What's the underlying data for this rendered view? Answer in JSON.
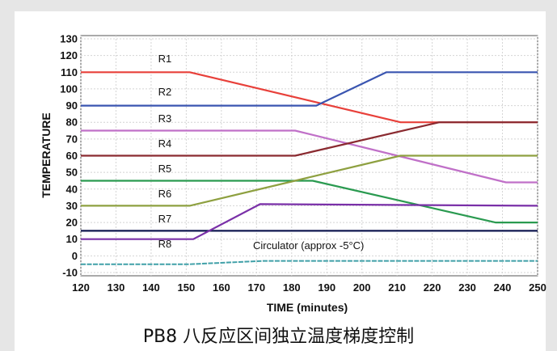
{
  "caption": "PB8 八反应区间独立温度梯度控制",
  "chart_data": {
    "type": "line",
    "xlabel": "TIME (minutes)",
    "ylabel": "TEMPERATURE",
    "xlim": [
      120,
      250
    ],
    "ylim": [
      -10,
      130
    ],
    "x_ticks": [
      120,
      130,
      140,
      150,
      160,
      170,
      180,
      190,
      200,
      210,
      220,
      230,
      240,
      250
    ],
    "y_ticks": [
      130,
      120,
      110,
      100,
      90,
      80,
      70,
      60,
      50,
      40,
      30,
      20,
      10,
      0,
      -10
    ],
    "y_tick_labels": [
      "130",
      "120",
      "110",
      "100",
      "90",
      "80",
      "70",
      "60",
      "50",
      "40",
      "30",
      "20",
      "10",
      "0",
      "-10"
    ],
    "grid": true,
    "series": [
      {
        "name": "R1",
        "color": "#e8403a",
        "points": [
          [
            120,
            110
          ],
          [
            151,
            110
          ],
          [
            211,
            80
          ],
          [
            250,
            80
          ]
        ]
      },
      {
        "name": "R2",
        "color": "#3a55b0",
        "points": [
          [
            120,
            90
          ],
          [
            187,
            90
          ],
          [
            207,
            110
          ],
          [
            250,
            110
          ]
        ]
      },
      {
        "name": "R3",
        "color": "#c070c8",
        "points": [
          [
            120,
            75
          ],
          [
            181,
            75
          ],
          [
            241,
            44
          ],
          [
            250,
            44
          ]
        ]
      },
      {
        "name": "R4",
        "color": "#8a2a30",
        "points": [
          [
            120,
            60
          ],
          [
            181,
            60
          ],
          [
            222,
            80
          ],
          [
            250,
            80
          ]
        ]
      },
      {
        "name": "R5",
        "color": "#2a9a50",
        "points": [
          [
            120,
            45
          ],
          [
            186,
            45
          ],
          [
            238,
            20
          ],
          [
            250,
            20
          ]
        ]
      },
      {
        "name": "R6",
        "color": "#8ea040",
        "points": [
          [
            120,
            30
          ],
          [
            151,
            30
          ],
          [
            211,
            60
          ],
          [
            250,
            60
          ]
        ]
      },
      {
        "name": "R7",
        "color": "#101850",
        "points": [
          [
            120,
            15
          ],
          [
            250,
            15
          ]
        ]
      },
      {
        "name": "R8",
        "color": "#7a30a8",
        "points": [
          [
            120,
            10
          ],
          [
            152,
            10
          ],
          [
            171,
            31
          ],
          [
            250,
            30
          ]
        ]
      },
      {
        "name": "Circulator (approx -5°C)",
        "color": "#40a0a8",
        "points": [
          [
            120,
            -5
          ],
          [
            151,
            -5
          ],
          [
            172,
            -3
          ],
          [
            250,
            -3
          ]
        ]
      }
    ],
    "series_labels": [
      {
        "text": "R1",
        "x": 142,
        "y": 116
      },
      {
        "text": "R2",
        "x": 142,
        "y": 96
      },
      {
        "text": "R3",
        "x": 142,
        "y": 80
      },
      {
        "text": "R4",
        "x": 142,
        "y": 65
      },
      {
        "text": "R5",
        "x": 142,
        "y": 50
      },
      {
        "text": "R6",
        "x": 142,
        "y": 35
      },
      {
        "text": "R7",
        "x": 142,
        "y": 20
      },
      {
        "text": "R8",
        "x": 142,
        "y": 5
      },
      {
        "text": "Circulator (approx -5°C)",
        "x": 169,
        "y": 4
      }
    ]
  }
}
